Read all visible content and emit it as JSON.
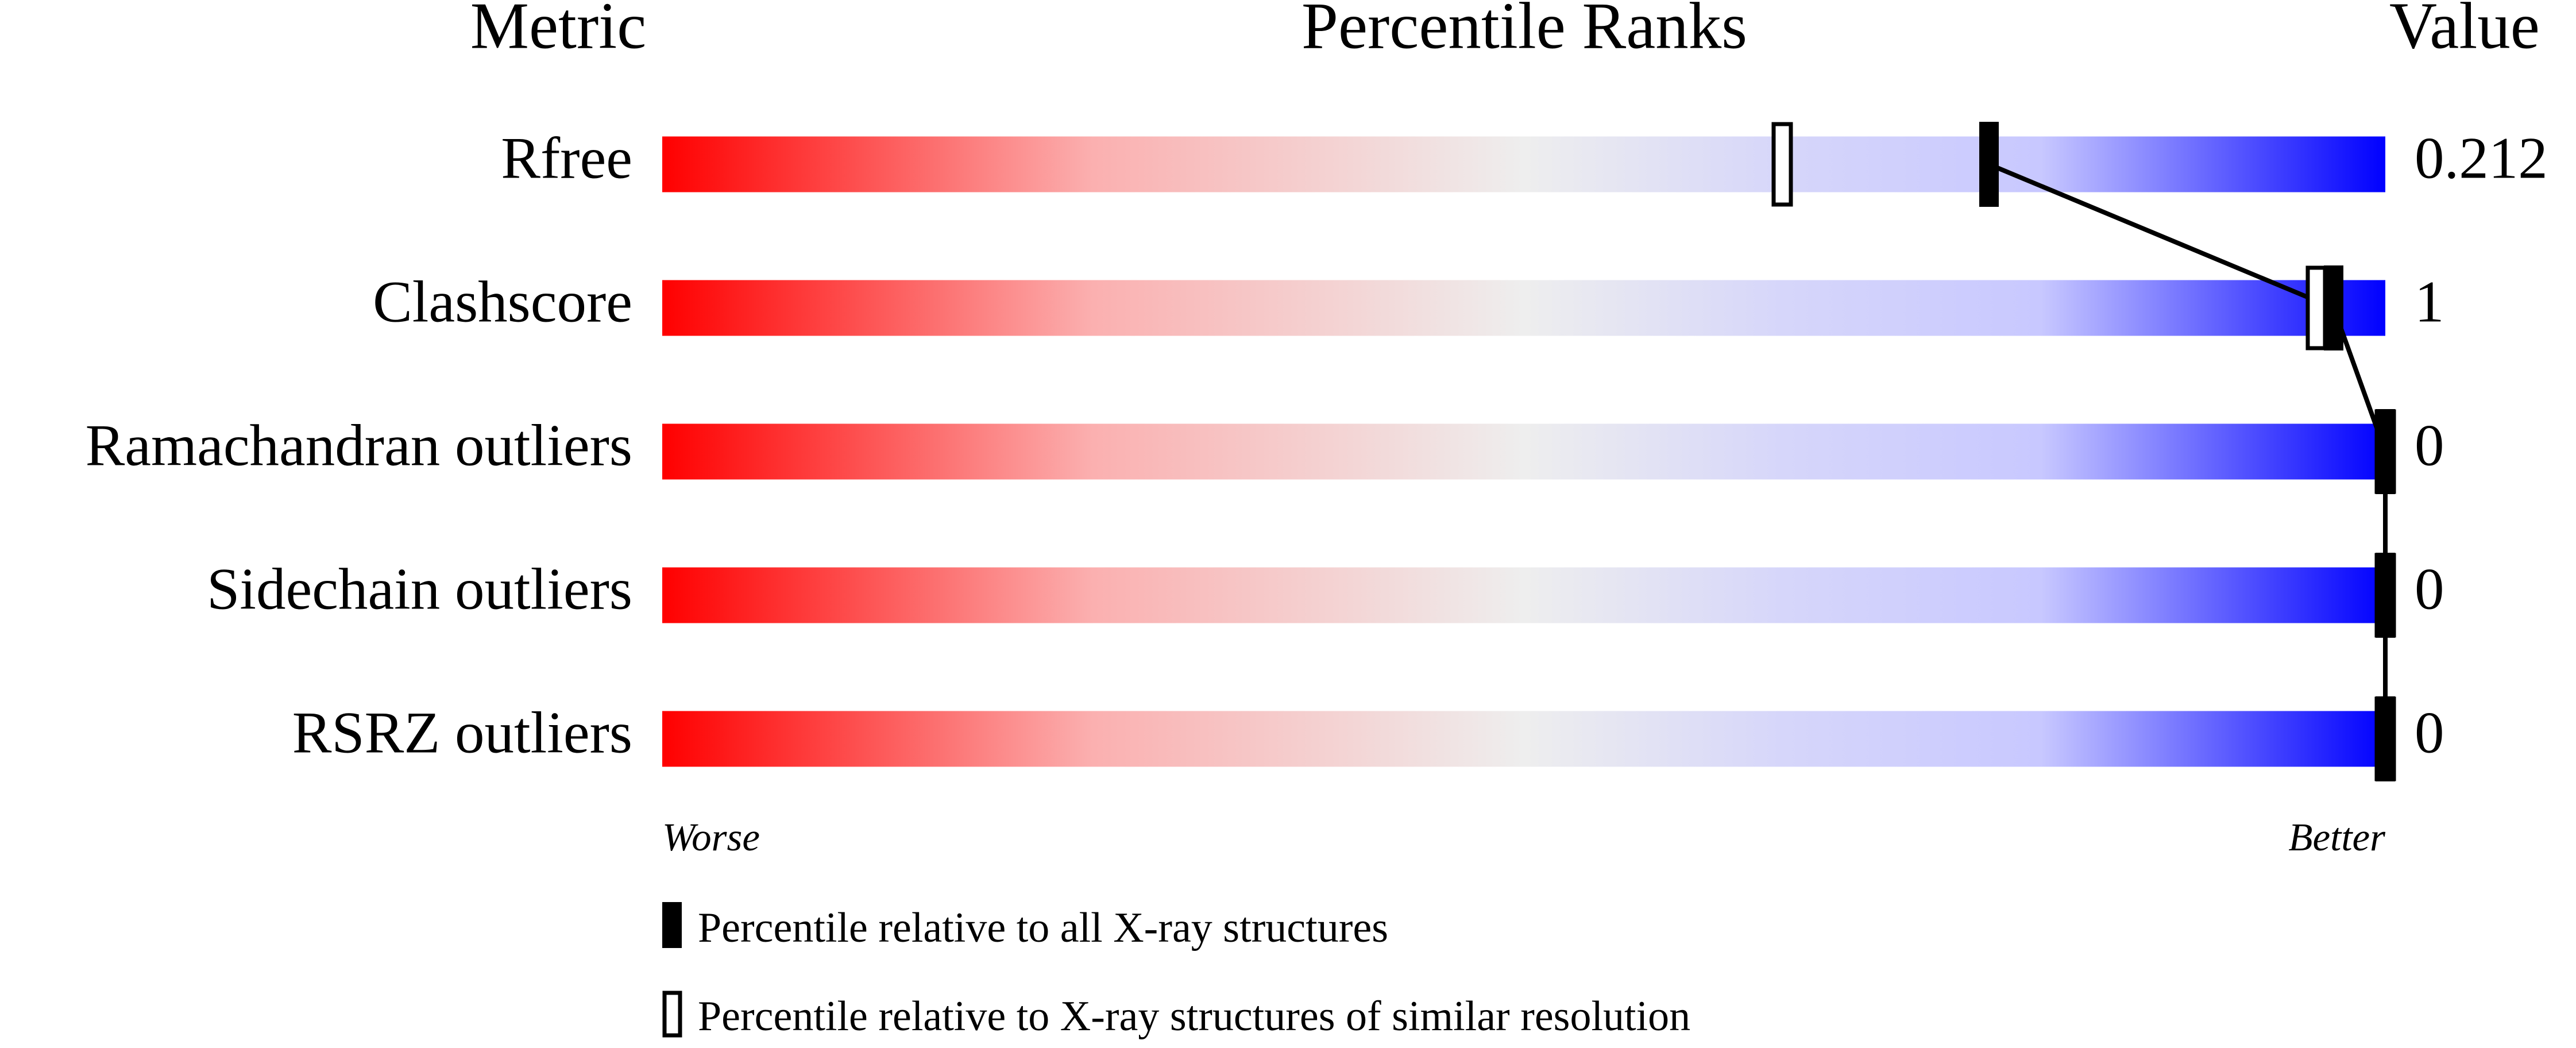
{
  "chart_data": {
    "type": "percentile",
    "title": "Percentile Ranks",
    "category_label": "Metric",
    "value_label": "Value",
    "categories": [
      "Rfree",
      "Clashscore",
      "Ramachandran outliers",
      "Sidechain outliers",
      "RSRZ outliers"
    ],
    "metric_values": [
      0.212,
      1,
      0,
      0,
      0
    ],
    "series": [
      {
        "name": "Percentile relative to all X-ray structures",
        "color": "#000000",
        "values": [
          77,
          97,
          100,
          100,
          100
        ]
      },
      {
        "name": "Percentile relative to X-ray structures of similar resolution",
        "color": "#000000",
        "values": [
          65,
          96,
          100,
          100,
          100
        ]
      }
    ],
    "xlim": [
      0,
      100
    ],
    "x_low_label": "Worse",
    "x_high_label": "Better"
  }
}
